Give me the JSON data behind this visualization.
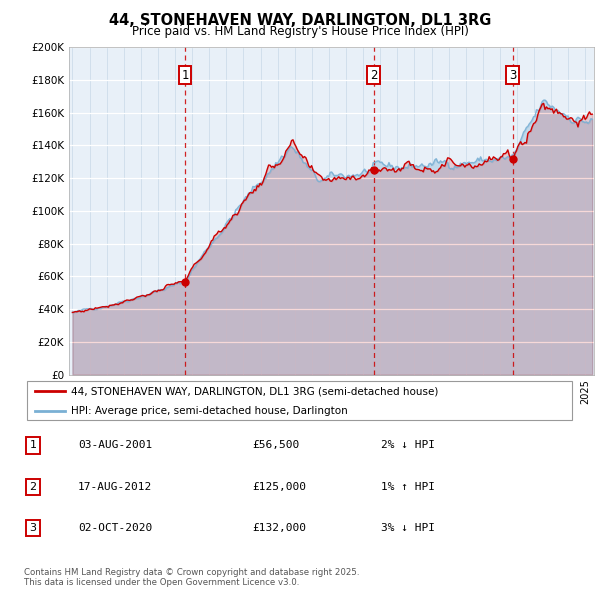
{
  "title": "44, STONEHAVEN WAY, DARLINGTON, DL1 3RG",
  "subtitle": "Price paid vs. HM Land Registry's House Price Index (HPI)",
  "legend_line1": "44, STONEHAVEN WAY, DARLINGTON, DL1 3RG (semi-detached house)",
  "legend_line2": "HPI: Average price, semi-detached house, Darlington",
  "transactions": [
    {
      "num": 1,
      "date": "03-AUG-2001",
      "price": 56500,
      "year": 2001.583,
      "pct": "2%",
      "dir": "↓"
    },
    {
      "num": 2,
      "date": "17-AUG-2012",
      "price": 125000,
      "year": 2012.625,
      "pct": "1%",
      "dir": "↑"
    },
    {
      "num": 3,
      "date": "02-OCT-2020",
      "price": 132000,
      "year": 2020.75,
      "pct": "3%",
      "dir": "↓"
    }
  ],
  "footnote": "Contains HM Land Registry data © Crown copyright and database right 2025.\nThis data is licensed under the Open Government Licence v3.0.",
  "red_color": "#cc0000",
  "blue_color": "#7ab0d4",
  "plot_bg": "#e8f0f8",
  "ylim": [
    0,
    200000
  ],
  "xlim_start": 1994.8,
  "xlim_end": 2025.5,
  "yticks": [
    0,
    20000,
    40000,
    60000,
    80000,
    100000,
    120000,
    140000,
    160000,
    180000,
    200000
  ],
  "ytick_labels": [
    "£0",
    "£20K",
    "£40K",
    "£60K",
    "£80K",
    "£100K",
    "£120K",
    "£140K",
    "£160K",
    "£180K",
    "£200K"
  ]
}
